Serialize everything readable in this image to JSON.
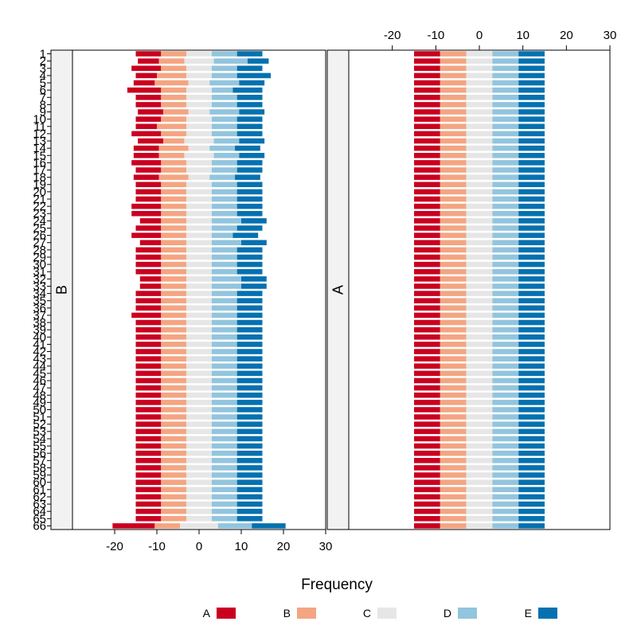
{
  "chart_data": {
    "type": "bar",
    "subtype": "diverging-stacked-likert",
    "xlabel": "Frequency",
    "xlim": [
      -30,
      30
    ],
    "x_ticks": [
      -20,
      -10,
      0,
      10,
      20,
      30
    ],
    "bottom_axis_panel": "B",
    "top_axis_panel": "A",
    "grid": false,
    "legend_position": "bottom",
    "colors": {
      "A": "#ca0020",
      "B": "#f4a582",
      "C": "#e6e6e6",
      "D": "#92c5de",
      "E": "#0571b0"
    },
    "legend": [
      {
        "key": "A",
        "color": "#ca0020"
      },
      {
        "key": "B",
        "color": "#f4a582"
      },
      {
        "key": "C",
        "color": "#e6e6e6"
      },
      {
        "key": "D",
        "color": "#92c5de"
      },
      {
        "key": "E",
        "color": "#0571b0"
      }
    ],
    "categories": [
      "1",
      "2",
      "3",
      "4",
      "5",
      "6",
      "7",
      "8",
      "9",
      "10",
      "11",
      "12",
      "13",
      "14",
      "15",
      "16",
      "17",
      "18",
      "19",
      "20",
      "21",
      "22",
      "23",
      "24",
      "25",
      "26",
      "27",
      "28",
      "29",
      "30",
      "31",
      "32",
      "33",
      "34",
      "35",
      "36",
      "37",
      "38",
      "39",
      "40",
      "41",
      "42",
      "43",
      "44",
      "45",
      "46",
      "47",
      "48",
      "49",
      "50",
      "51",
      "52",
      "53",
      "54",
      "55",
      "56",
      "57",
      "58",
      "59",
      "60",
      "61",
      "62",
      "63",
      "64",
      "65",
      "66"
    ],
    "panels": [
      {
        "strip": "B",
        "rows": [
          [
            6,
            6,
            6,
            6,
            6
          ],
          [
            5,
            6,
            7,
            8,
            5
          ],
          [
            7,
            6,
            6,
            6,
            6
          ],
          [
            5,
            7,
            6,
            6,
            8
          ],
          [
            5,
            8,
            5,
            7,
            6
          ],
          [
            8,
            6,
            6,
            5,
            7
          ],
          [
            6,
            6,
            6,
            6,
            6
          ],
          [
            6,
            6,
            6,
            6,
            6
          ],
          [
            6,
            6,
            5,
            7,
            6
          ],
          [
            6,
            6,
            6,
            6,
            6
          ],
          [
            5,
            7,
            6,
            6,
            6
          ],
          [
            7,
            6,
            6,
            6,
            6
          ],
          [
            6,
            5,
            7,
            6,
            6
          ],
          [
            6,
            7,
            5,
            6,
            6
          ],
          [
            6,
            6,
            7,
            6,
            6
          ],
          [
            7,
            6,
            6,
            6,
            6
          ],
          [
            6,
            6,
            6,
            6,
            6
          ],
          [
            6,
            7,
            5,
            6,
            6
          ],
          [
            6,
            6,
            6,
            6,
            6
          ],
          [
            6,
            6,
            6,
            6,
            6
          ],
          [
            6,
            6,
            6,
            6,
            6
          ],
          [
            7,
            6,
            6,
            6,
            6
          ],
          [
            7,
            6,
            6,
            6,
            6
          ],
          [
            5,
            6,
            6,
            7,
            6
          ],
          [
            6,
            6,
            6,
            6,
            6
          ],
          [
            7,
            6,
            6,
            5,
            6
          ],
          [
            5,
            6,
            6,
            7,
            6
          ],
          [
            6,
            6,
            6,
            6,
            6
          ],
          [
            6,
            6,
            6,
            6,
            6
          ],
          [
            6,
            6,
            6,
            6,
            6
          ],
          [
            6,
            6,
            6,
            6,
            6
          ],
          [
            5,
            6,
            6,
            7,
            6
          ],
          [
            5,
            6,
            6,
            7,
            6
          ],
          [
            6,
            6,
            6,
            6,
            6
          ],
          [
            6,
            6,
            6,
            6,
            6
          ],
          [
            6,
            6,
            6,
            6,
            6
          ],
          [
            7,
            6,
            6,
            6,
            6
          ],
          [
            6,
            6,
            6,
            6,
            6
          ],
          [
            6,
            6,
            6,
            6,
            6
          ],
          [
            6,
            6,
            6,
            6,
            6
          ],
          [
            6,
            6,
            6,
            6,
            6
          ],
          [
            6,
            6,
            6,
            6,
            6
          ],
          [
            6,
            6,
            6,
            6,
            6
          ],
          [
            6,
            6,
            6,
            6,
            6
          ],
          [
            6,
            6,
            6,
            6,
            6
          ],
          [
            6,
            6,
            6,
            6,
            6
          ],
          [
            6,
            6,
            6,
            6,
            6
          ],
          [
            6,
            6,
            6,
            6,
            6
          ],
          [
            6,
            6,
            6,
            6,
            6
          ],
          [
            6,
            6,
            6,
            6,
            6
          ],
          [
            6,
            6,
            6,
            6,
            6
          ],
          [
            6,
            6,
            6,
            6,
            6
          ],
          [
            6,
            6,
            6,
            6,
            6
          ],
          [
            6,
            6,
            6,
            6,
            6
          ],
          [
            6,
            6,
            6,
            6,
            6
          ],
          [
            6,
            6,
            6,
            6,
            6
          ],
          [
            6,
            6,
            6,
            6,
            6
          ],
          [
            6,
            6,
            6,
            6,
            6
          ],
          [
            6,
            6,
            6,
            6,
            6
          ],
          [
            6,
            6,
            6,
            6,
            6
          ],
          [
            6,
            6,
            6,
            6,
            6
          ],
          [
            6,
            6,
            6,
            6,
            6
          ],
          [
            6,
            6,
            6,
            6,
            6
          ],
          [
            6,
            6,
            6,
            6,
            6
          ],
          [
            6,
            6,
            6,
            6,
            6
          ],
          [
            10,
            6,
            9,
            8,
            8
          ]
        ]
      },
      {
        "strip": "A",
        "rows": [
          [
            6,
            6,
            6,
            6,
            6
          ],
          [
            6,
            6,
            6,
            6,
            6
          ],
          [
            6,
            6,
            6,
            6,
            6
          ],
          [
            6,
            6,
            6,
            6,
            6
          ],
          [
            6,
            6,
            6,
            6,
            6
          ],
          [
            6,
            6,
            6,
            6,
            6
          ],
          [
            6,
            6,
            6,
            6,
            6
          ],
          [
            6,
            6,
            6,
            6,
            6
          ],
          [
            6,
            6,
            6,
            6,
            6
          ],
          [
            6,
            6,
            6,
            6,
            6
          ],
          [
            6,
            6,
            6,
            6,
            6
          ],
          [
            6,
            6,
            6,
            6,
            6
          ],
          [
            6,
            6,
            6,
            6,
            6
          ],
          [
            6,
            6,
            6,
            6,
            6
          ],
          [
            6,
            6,
            6,
            6,
            6
          ],
          [
            6,
            6,
            6,
            6,
            6
          ],
          [
            6,
            6,
            6,
            6,
            6
          ],
          [
            6,
            6,
            6,
            6,
            6
          ],
          [
            6,
            6,
            6,
            6,
            6
          ],
          [
            6,
            6,
            6,
            6,
            6
          ],
          [
            6,
            6,
            6,
            6,
            6
          ],
          [
            6,
            6,
            6,
            6,
            6
          ],
          [
            6,
            6,
            6,
            6,
            6
          ],
          [
            6,
            6,
            6,
            6,
            6
          ],
          [
            6,
            6,
            6,
            6,
            6
          ],
          [
            6,
            6,
            6,
            6,
            6
          ],
          [
            6,
            6,
            6,
            6,
            6
          ],
          [
            6,
            6,
            6,
            6,
            6
          ],
          [
            6,
            6,
            6,
            6,
            6
          ],
          [
            6,
            6,
            6,
            6,
            6
          ],
          [
            6,
            6,
            6,
            6,
            6
          ],
          [
            6,
            6,
            6,
            6,
            6
          ],
          [
            6,
            6,
            6,
            6,
            6
          ],
          [
            6,
            6,
            6,
            6,
            6
          ],
          [
            6,
            6,
            6,
            6,
            6
          ],
          [
            6,
            6,
            6,
            6,
            6
          ],
          [
            6,
            6,
            6,
            6,
            6
          ],
          [
            6,
            6,
            6,
            6,
            6
          ],
          [
            6,
            6,
            6,
            6,
            6
          ],
          [
            6,
            6,
            6,
            6,
            6
          ],
          [
            6,
            6,
            6,
            6,
            6
          ],
          [
            6,
            6,
            6,
            6,
            6
          ],
          [
            6,
            6,
            6,
            6,
            6
          ],
          [
            6,
            6,
            6,
            6,
            6
          ],
          [
            6,
            6,
            6,
            6,
            6
          ],
          [
            6,
            6,
            6,
            6,
            6
          ],
          [
            6,
            6,
            6,
            6,
            6
          ],
          [
            6,
            6,
            6,
            6,
            6
          ],
          [
            6,
            6,
            6,
            6,
            6
          ],
          [
            6,
            6,
            6,
            6,
            6
          ],
          [
            6,
            6,
            6,
            6,
            6
          ],
          [
            6,
            6,
            6,
            6,
            6
          ],
          [
            6,
            6,
            6,
            6,
            6
          ],
          [
            6,
            6,
            6,
            6,
            6
          ],
          [
            6,
            6,
            6,
            6,
            6
          ],
          [
            6,
            6,
            6,
            6,
            6
          ],
          [
            6,
            6,
            6,
            6,
            6
          ],
          [
            6,
            6,
            6,
            6,
            6
          ],
          [
            6,
            6,
            6,
            6,
            6
          ],
          [
            6,
            6,
            6,
            6,
            6
          ],
          [
            6,
            6,
            6,
            6,
            6
          ],
          [
            6,
            6,
            6,
            6,
            6
          ],
          [
            6,
            6,
            6,
            6,
            6
          ],
          [
            6,
            6,
            6,
            6,
            6
          ],
          [
            6,
            6,
            6,
            6,
            6
          ],
          [
            6,
            6,
            6,
            6,
            6
          ]
        ]
      }
    ]
  }
}
